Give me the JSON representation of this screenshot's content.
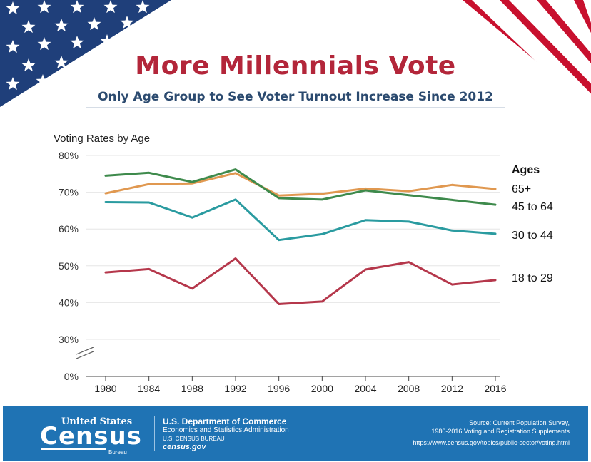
{
  "header": {
    "title": "More Millennials Vote",
    "subtitle": "Only Age Group to See Voter Turnout Increase Since 2012"
  },
  "colors": {
    "title": "#b3263a",
    "subtitle": "#2b4a6f",
    "footer_bg": "#1f73b4",
    "flag_blue": "#1f3f7a",
    "flag_red": "#c8102e"
  },
  "chart_data": {
    "type": "line",
    "title": "Voting Rates by Age",
    "legend_title": "Ages",
    "x": [
      1980,
      1984,
      1988,
      1992,
      1996,
      2000,
      2004,
      2008,
      2012,
      2016
    ],
    "y_ticks": [
      "0%",
      "30%",
      "40%",
      "50%",
      "60%",
      "70%",
      "80%"
    ],
    "ylim": [
      30,
      80
    ],
    "axis_break": true,
    "grid": true,
    "series": [
      {
        "name": "65+",
        "color": "#e09850",
        "values": [
          69.7,
          72.2,
          72.4,
          75.2,
          69.1,
          69.6,
          71.0,
          70.3,
          72.0,
          70.9
        ]
      },
      {
        "name": "45 to 64",
        "color": "#3e8a4c",
        "values": [
          74.5,
          75.3,
          72.8,
          76.2,
          68.4,
          68.0,
          70.5,
          69.2,
          67.9,
          66.6
        ]
      },
      {
        "name": "30 to 44",
        "color": "#2a9ba0",
        "values": [
          67.3,
          67.2,
          63.1,
          68.0,
          57.0,
          58.6,
          62.4,
          62.0,
          59.6,
          58.7
        ]
      },
      {
        "name": "18 to 29",
        "color": "#b5374b",
        "values": [
          48.2,
          49.1,
          43.8,
          52.0,
          39.6,
          40.3,
          49.0,
          51.0,
          44.9,
          46.1
        ]
      }
    ]
  },
  "footer": {
    "logo_top": "United States",
    "logo_main": "Census",
    "logo_bottom": "Bureau",
    "dept": "U.S. Department of Commerce",
    "esa": "Economics and Statistics Administration",
    "ucb": "U.S. CENSUS BUREAU",
    "census_gov": "census.gov",
    "source_line1": "Source: Current Population Survey,",
    "source_line2": "1980-2016 Voting and Registration Supplements",
    "source_url": "https://www.census.gov/topics/public-sector/voting.html"
  }
}
